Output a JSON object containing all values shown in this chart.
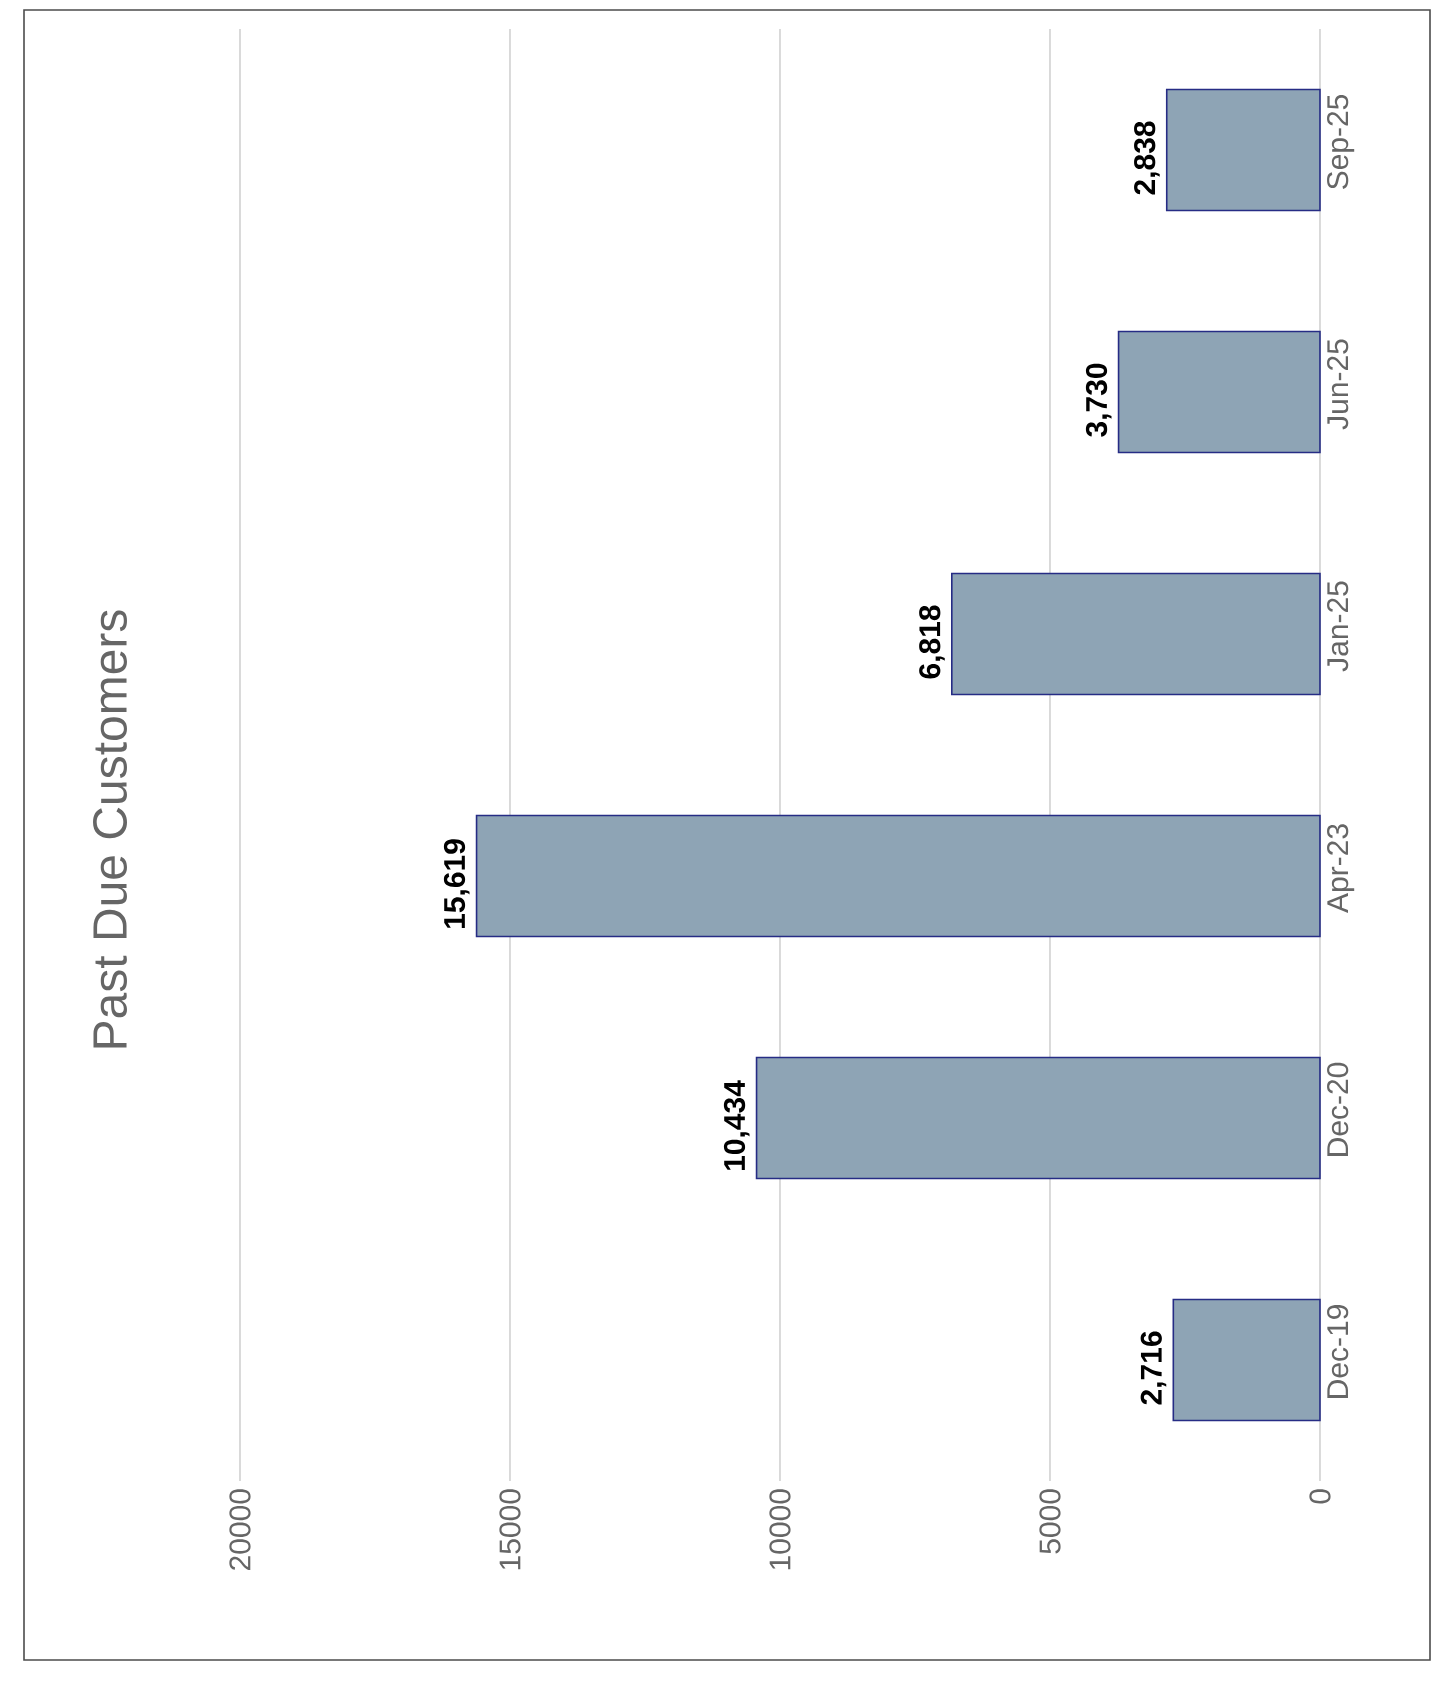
{
  "chart_data": {
    "type": "bar",
    "orientation": "horizontal",
    "title": "Past Due Customers",
    "categories": [
      "Sep-25",
      "Jun-25",
      "Jan-25",
      "Apr-23",
      "Dec-20",
      "Dec-19"
    ],
    "values": [
      2838,
      3730,
      6818,
      15619,
      10434,
      2716
    ],
    "value_labels": [
      "2,838",
      "3,730",
      "6,818",
      "15,619",
      "10,434",
      "2,716"
    ],
    "color": "#8ea4b5",
    "xlim": [
      20000,
      0
    ],
    "xticks": [
      0,
      5000,
      10000,
      15000,
      20000
    ],
    "grid": "x"
  }
}
